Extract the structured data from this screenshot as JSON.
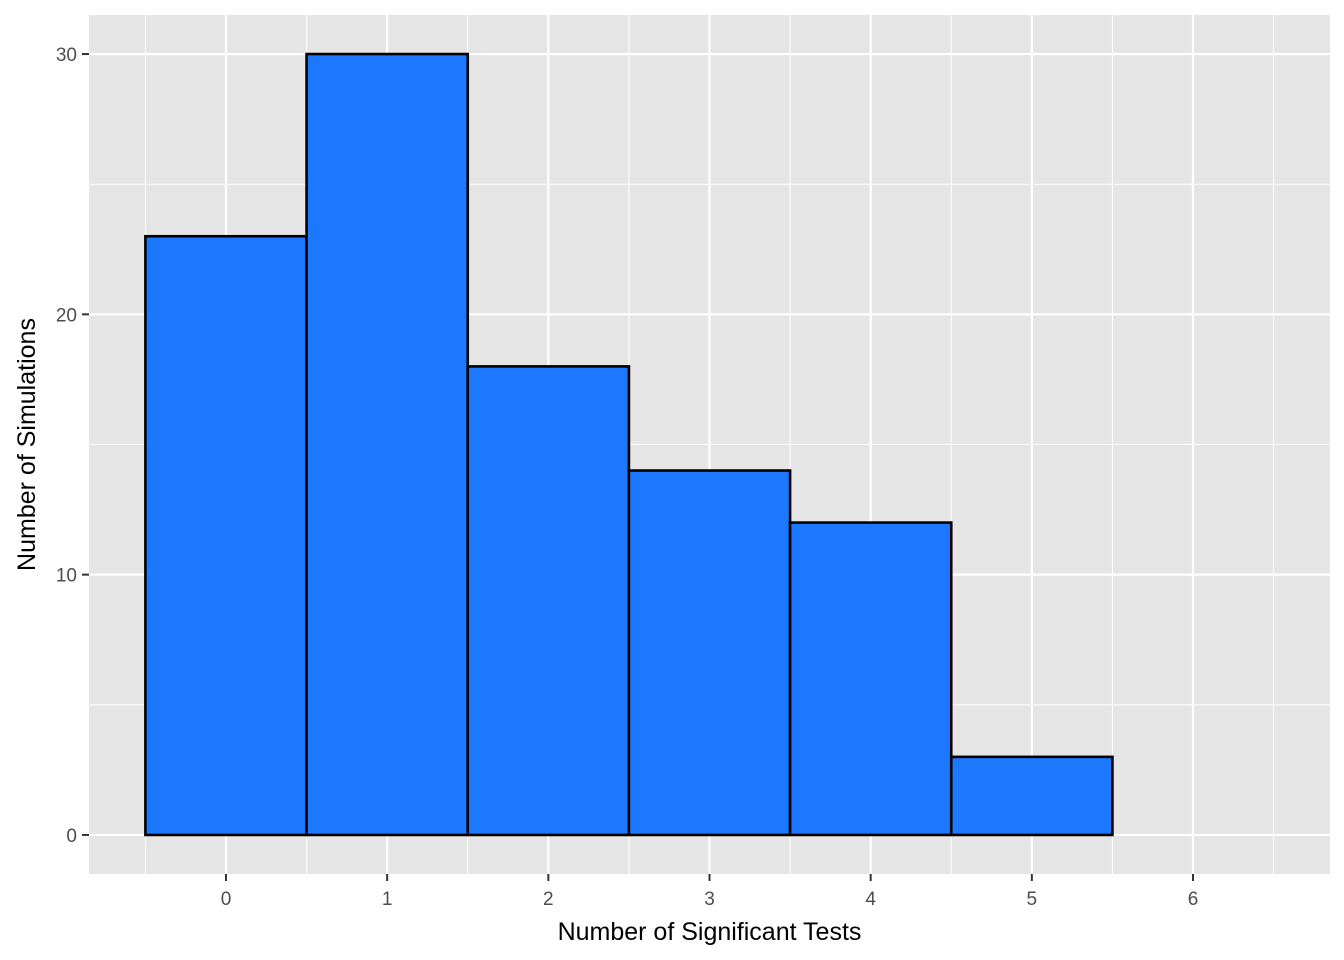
{
  "chart_data": {
    "type": "bar",
    "title": "",
    "xlabel": "Number of Significant Tests",
    "ylabel": "Number of Simulations",
    "bins": [
      {
        "center": 0,
        "count": 23
      },
      {
        "center": 1,
        "count": 30
      },
      {
        "center": 2,
        "count": 18
      },
      {
        "center": 3,
        "count": 14
      },
      {
        "center": 4,
        "count": 12
      },
      {
        "center": 5,
        "count": 3
      }
    ],
    "bin_width": 1,
    "x_ticks": [
      "0",
      "1",
      "2",
      "3",
      "4",
      "5",
      "6"
    ],
    "y_ticks": [
      "0",
      "10",
      "20",
      "30"
    ],
    "xlim": [
      -0.85,
      6.85
    ],
    "ylim": [
      -1.5,
      31.5
    ],
    "grid": true,
    "bar_fill": "#1c79ff",
    "bar_outline": "#000000",
    "panel_background": "#e5e5e5",
    "gridline_color": "#ffffff"
  }
}
